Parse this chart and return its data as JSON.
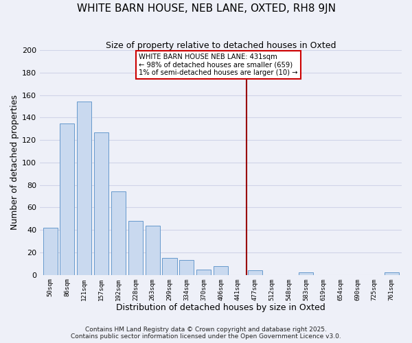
{
  "title": "WHITE BARN HOUSE, NEB LANE, OXTED, RH8 9JN",
  "subtitle": "Size of property relative to detached houses in Oxted",
  "xlabel": "Distribution of detached houses by size in Oxted",
  "ylabel": "Number of detached properties",
  "bar_labels": [
    "50sqm",
    "86sqm",
    "121sqm",
    "157sqm",
    "192sqm",
    "228sqm",
    "263sqm",
    "299sqm",
    "334sqm",
    "370sqm",
    "406sqm",
    "441sqm",
    "477sqm",
    "512sqm",
    "548sqm",
    "583sqm",
    "619sqm",
    "654sqm",
    "690sqm",
    "725sqm",
    "761sqm"
  ],
  "bar_values": [
    42,
    135,
    154,
    127,
    74,
    48,
    44,
    15,
    13,
    5,
    8,
    0,
    4,
    0,
    0,
    2,
    0,
    0,
    0,
    0,
    2
  ],
  "bar_color": "#c9d9ef",
  "bar_edge_color": "#6699cc",
  "vline_x": 11.5,
  "vline_color": "#990000",
  "annotation_text": "WHITE BARN HOUSE NEB LANE: 431sqm\n← 98% of detached houses are smaller (659)\n1% of semi-detached houses are larger (10) →",
  "annotation_box_color": "white",
  "annotation_box_edge": "#cc0000",
  "ylim": [
    0,
    200
  ],
  "yticks": [
    0,
    20,
    40,
    60,
    80,
    100,
    120,
    140,
    160,
    180,
    200
  ],
  "footer1": "Contains HM Land Registry data © Crown copyright and database right 2025.",
  "footer2": "Contains public sector information licensed under the Open Government Licence v3.0.",
  "background_color": "#eef0f8",
  "grid_color": "#d0d4e8",
  "title_fontsize": 11,
  "subtitle_fontsize": 9
}
